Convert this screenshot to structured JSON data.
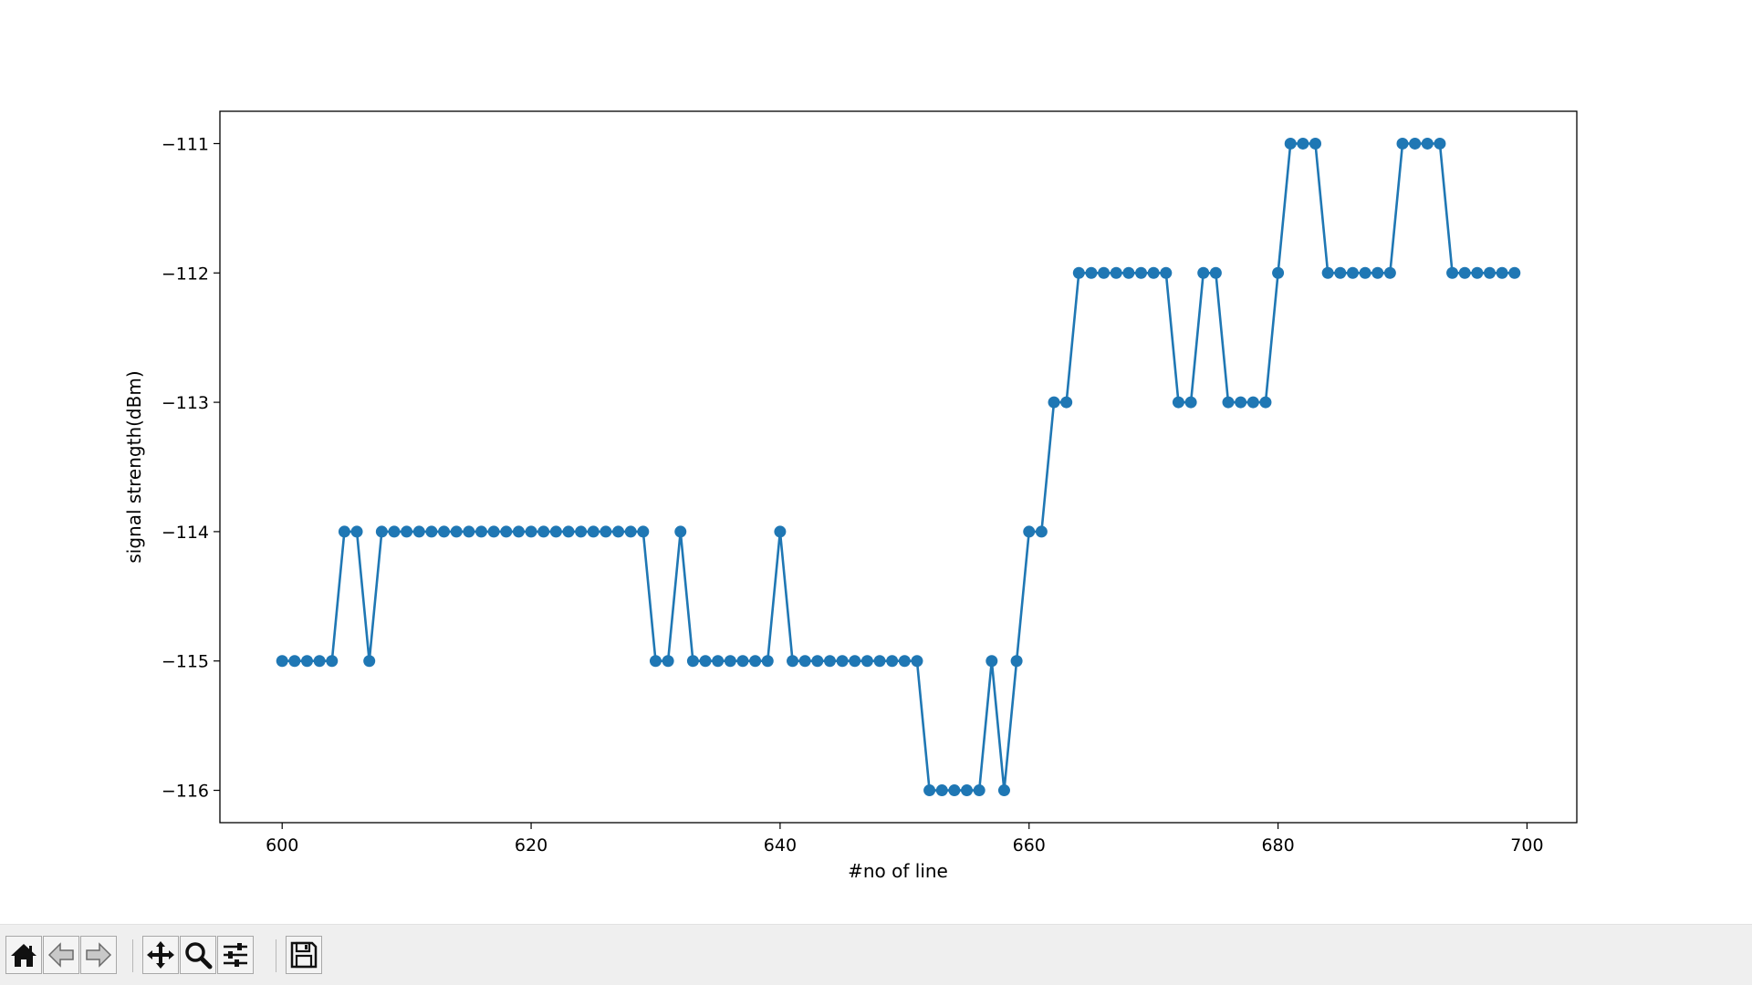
{
  "chart_data": {
    "type": "line",
    "marker": "circle",
    "title": "",
    "xlabel": "#no of line",
    "ylabel": "signal strength(dBm)",
    "xlim": [
      595,
      704
    ],
    "ylim": [
      -116.25,
      -110.75
    ],
    "xticks": [
      600,
      620,
      640,
      660,
      680,
      700
    ],
    "yticks": [
      -116,
      -115,
      -114,
      -113,
      -112,
      -111
    ],
    "xtick_labels": [
      "600",
      "620",
      "640",
      "660",
      "680",
      "700"
    ],
    "ytick_labels": [
      "−116",
      "−115",
      "−114",
      "−113",
      "−112",
      "−111"
    ],
    "grid": false,
    "color": "#1f77b4",
    "series": [
      {
        "x": [
          600,
          601,
          602,
          603,
          604,
          605,
          606,
          607,
          608,
          609,
          610,
          611,
          612,
          613,
          614,
          615,
          616,
          617,
          618,
          619,
          620,
          621,
          622,
          623,
          624,
          625,
          626,
          627,
          628,
          629,
          630,
          631,
          632,
          633,
          634,
          635,
          636,
          637,
          638,
          639,
          640,
          641,
          642,
          643,
          644,
          645,
          646,
          647,
          648,
          649,
          650,
          651,
          652,
          653,
          654,
          655,
          656,
          657,
          658,
          659,
          660,
          661,
          662,
          663,
          664,
          665,
          666,
          667,
          668,
          669,
          670,
          671,
          672,
          673,
          674,
          675,
          676,
          677,
          678,
          679,
          680,
          681,
          682,
          683,
          684,
          685,
          686,
          687,
          688,
          689,
          690,
          691,
          692,
          693,
          694,
          695,
          696,
          697,
          698,
          699
        ],
        "y": [
          -115,
          -115,
          -115,
          -115,
          -115,
          -114,
          -114,
          -115,
          -114,
          -114,
          -114,
          -114,
          -114,
          -114,
          -114,
          -114,
          -114,
          -114,
          -114,
          -114,
          -114,
          -114,
          -114,
          -114,
          -114,
          -114,
          -114,
          -114,
          -114,
          -114,
          -115,
          -115,
          -114,
          -115,
          -115,
          -115,
          -115,
          -115,
          -115,
          -115,
          -114,
          -115,
          -115,
          -115,
          -115,
          -115,
          -115,
          -115,
          -115,
          -115,
          -115,
          -115,
          -116,
          -116,
          -116,
          -116,
          -116,
          -115,
          -116,
          -115,
          -114,
          -114,
          -113,
          -113,
          -112,
          -112,
          -112,
          -112,
          -112,
          -112,
          -112,
          -112,
          -113,
          -113,
          -112,
          -112,
          -113,
          -113,
          -113,
          -113,
          -112,
          -111,
          -111,
          -111,
          -112,
          -112,
          -112,
          -112,
          -112,
          -112,
          -111,
          -111,
          -111,
          -111,
          -112,
          -112,
          -112,
          -112,
          -112,
          -112
        ]
      }
    ]
  },
  "toolbar": {
    "buttons": [
      "home-icon",
      "back-arrow-icon",
      "forward-arrow-icon",
      "pan-icon",
      "zoom-icon",
      "configure-subplots-icon",
      "save-icon"
    ]
  }
}
